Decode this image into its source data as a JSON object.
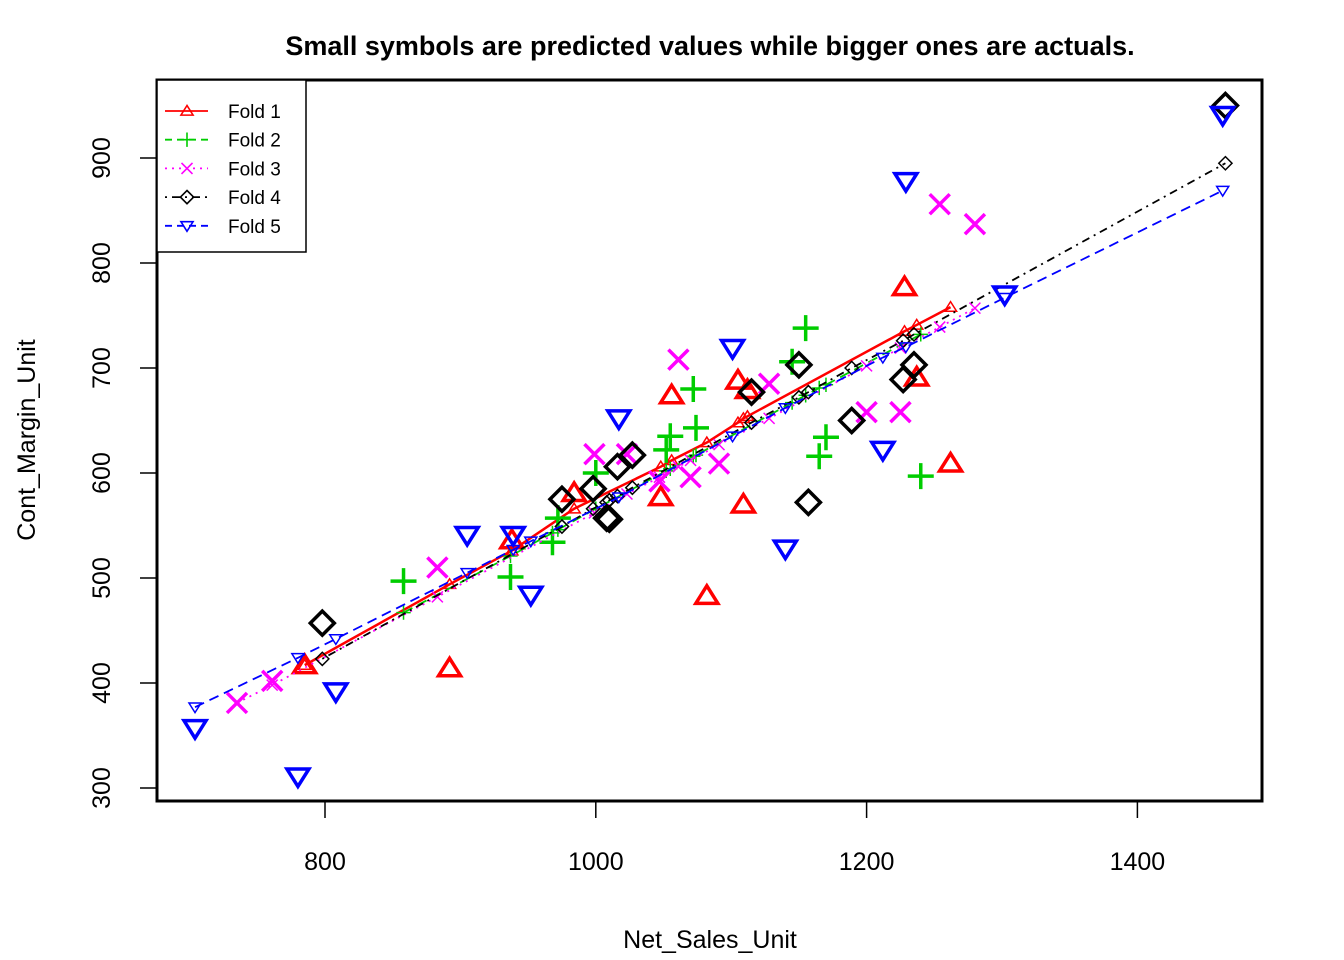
{
  "chart_data": {
    "type": "scatter",
    "title": "Small symbols are predicted values while bigger ones are actuals.",
    "xlabel": "Net_Sales_Unit",
    "ylabel": "Cont_Margin_Unit",
    "xlim": [
      680,
      1490
    ],
    "ylim": [
      290,
      970
    ],
    "xticks": [
      "800",
      "1000",
      "1200",
      "1400"
    ],
    "yticks": [
      "300",
      "400",
      "500",
      "600",
      "700",
      "800",
      "900"
    ],
    "grid": false,
    "legend_position": "top-left",
    "series": [
      {
        "name": "Fold 1",
        "color": "#ff0000",
        "symbol": "triangle",
        "line": "solid",
        "actual": [
          [
            785,
            417
          ],
          [
            892,
            414
          ],
          [
            938,
            536
          ],
          [
            984,
            581
          ],
          [
            1048,
            577
          ],
          [
            1056,
            674
          ],
          [
            1082,
            483
          ],
          [
            1105,
            688
          ],
          [
            1109,
            570
          ],
          [
            1112,
            679
          ],
          [
            1228,
            777
          ],
          [
            1237,
            691
          ],
          [
            1262,
            609
          ]
        ],
        "predicted": [
          [
            785,
            417
          ],
          [
            892,
            494
          ],
          [
            938,
            526
          ],
          [
            984,
            566
          ],
          [
            1048,
            606
          ],
          [
            1056,
            612
          ],
          [
            1082,
            629
          ],
          [
            1105,
            648
          ],
          [
            1109,
            652
          ],
          [
            1112,
            654
          ],
          [
            1228,
            735
          ],
          [
            1237,
            741
          ],
          [
            1262,
            758
          ]
        ]
      },
      {
        "name": "Fold 2",
        "color": "#00cd00",
        "symbol": "plus",
        "line": "dashed",
        "actual": [
          [
            858,
            497
          ],
          [
            937,
            501
          ],
          [
            968,
            534
          ],
          [
            972,
            557
          ],
          [
            1000,
            600
          ],
          [
            1052,
            622
          ],
          [
            1055,
            635
          ],
          [
            1072,
            680
          ],
          [
            1074,
            643
          ],
          [
            1145,
            706
          ],
          [
            1155,
            738
          ],
          [
            1165,
            616
          ],
          [
            1170,
            634
          ],
          [
            1240,
            597
          ]
        ],
        "predicted": [
          [
            858,
            467
          ],
          [
            937,
            521
          ],
          [
            968,
            543
          ],
          [
            972,
            546
          ],
          [
            1000,
            566
          ],
          [
            1052,
            602
          ],
          [
            1055,
            604
          ],
          [
            1072,
            616
          ],
          [
            1074,
            617
          ],
          [
            1145,
            667
          ],
          [
            1155,
            674
          ],
          [
            1165,
            681
          ],
          [
            1170,
            684
          ],
          [
            1240,
            732
          ]
        ]
      },
      {
        "name": "Fold 3",
        "color": "#ff00ff",
        "symbol": "x",
        "line": "dotted",
        "actual": [
          [
            735,
            381
          ],
          [
            761,
            402
          ],
          [
            883,
            510
          ],
          [
            999,
            618
          ],
          [
            1023,
            618
          ],
          [
            1047,
            592
          ],
          [
            1061,
            708
          ],
          [
            1070,
            596
          ],
          [
            1091,
            609
          ],
          [
            1128,
            685
          ],
          [
            1200,
            658
          ],
          [
            1225,
            658
          ],
          [
            1254,
            856
          ],
          [
            1280,
            837
          ]
        ],
        "predicted": [
          [
            735,
            381
          ],
          [
            761,
            398
          ],
          [
            883,
            482
          ],
          [
            999,
            562
          ],
          [
            1023,
            580
          ],
          [
            1047,
            596
          ],
          [
            1061,
            606
          ],
          [
            1070,
            612
          ],
          [
            1091,
            627
          ],
          [
            1128,
            652
          ],
          [
            1200,
            702
          ],
          [
            1225,
            719
          ],
          [
            1254,
            739
          ],
          [
            1280,
            757
          ]
        ]
      },
      {
        "name": "Fold 4",
        "color": "#000000",
        "symbol": "diamond",
        "line": "dotdash",
        "actual": [
          [
            798,
            457
          ],
          [
            975,
            575
          ],
          [
            998,
            585
          ],
          [
            1008,
            557
          ],
          [
            1010,
            556
          ],
          [
            1016,
            606
          ],
          [
            1027,
            617
          ],
          [
            1115,
            677
          ],
          [
            1150,
            703
          ],
          [
            1157,
            572
          ],
          [
            1189,
            650
          ],
          [
            1227,
            689
          ],
          [
            1235,
            703
          ],
          [
            1465,
            950
          ]
        ],
        "predicted": [
          [
            798,
            423
          ],
          [
            975,
            549
          ],
          [
            998,
            566
          ],
          [
            1008,
            572
          ],
          [
            1010,
            574
          ],
          [
            1016,
            578
          ],
          [
            1027,
            586
          ],
          [
            1115,
            648
          ],
          [
            1150,
            672
          ],
          [
            1157,
            677
          ],
          [
            1189,
            700
          ],
          [
            1227,
            726
          ],
          [
            1235,
            732
          ],
          [
            1465,
            895
          ]
        ]
      },
      {
        "name": "Fold 5",
        "color": "#0000ff",
        "symbol": "triangle-down",
        "line": "dashed",
        "actual": [
          [
            704,
            357
          ],
          [
            780,
            311
          ],
          [
            808,
            392
          ],
          [
            905,
            541
          ],
          [
            939,
            541
          ],
          [
            952,
            484
          ],
          [
            1017,
            652
          ],
          [
            1101,
            719
          ],
          [
            1140,
            528
          ],
          [
            1212,
            622
          ],
          [
            1229,
            878
          ],
          [
            1302,
            770
          ],
          [
            1463,
            941
          ]
        ],
        "predicted": [
          [
            704,
            377
          ],
          [
            780,
            424
          ],
          [
            808,
            442
          ],
          [
            905,
            505
          ],
          [
            939,
            527
          ],
          [
            952,
            535
          ],
          [
            1017,
            577
          ],
          [
            1101,
            635
          ],
          [
            1140,
            662
          ],
          [
            1212,
            710
          ],
          [
            1229,
            720
          ],
          [
            1302,
            767
          ],
          [
            1463,
            869
          ]
        ]
      }
    ]
  }
}
